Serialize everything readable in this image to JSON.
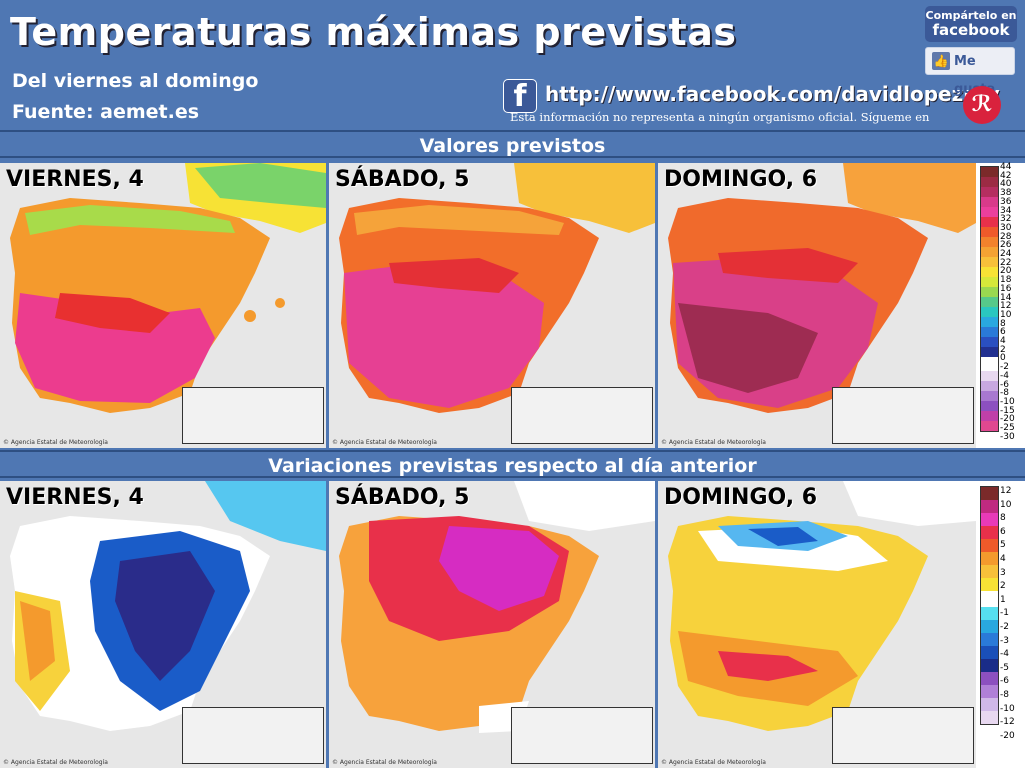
{
  "header": {
    "title": "Temperaturas máximas previstas",
    "subtitle": "Del viernes al domingo",
    "source": "Fuente: aemet.es",
    "fb_url": "http://www.facebook.com/davidlopezrey",
    "disclaimer": "Esta información no representa a ningún organismo oficial. Sígueme en",
    "share_line1": "Compártelo en",
    "share_line2": "facebook",
    "like_label": "Me gusta",
    "fb_letter": "f",
    "author_logo_letter": "ℛ"
  },
  "sections": [
    {
      "title": "Valores previstos",
      "days": [
        "VIERNES, 4",
        "SÁBADO, 5",
        "DOMINGO, 6"
      ],
      "legend_ticks": [
        "44",
        "42",
        "40",
        "38",
        "36",
        "34",
        "32",
        "30",
        "28",
        "26",
        "24",
        "22",
        "20",
        "18",
        "16",
        "14",
        "12",
        "10",
        "8",
        "6",
        "4",
        "2",
        "0",
        "-2",
        "-4",
        "-6",
        "-8",
        "-10",
        "-15",
        "-20",
        "-25",
        "-30"
      ]
    },
    {
      "title": "Variaciones previstas respecto al día anterior",
      "days": [
        "VIERNES, 4",
        "SÁBADO, 5",
        "DOMINGO, 6"
      ],
      "legend_ticks": [
        "12",
        "10",
        "8",
        "6",
        "5",
        "4",
        "3",
        "2",
        "1",
        "-1",
        "-2",
        "-3",
        "-4",
        "-5",
        "-6",
        "-8",
        "-10",
        "-12",
        "-20"
      ]
    }
  ],
  "map_credit": "© Agencia Estatal de Meteorología",
  "colors": {
    "background_blue": "#4f77b3",
    "facebook_blue": "#3b5998",
    "map_grey": "#e7e7e7"
  }
}
